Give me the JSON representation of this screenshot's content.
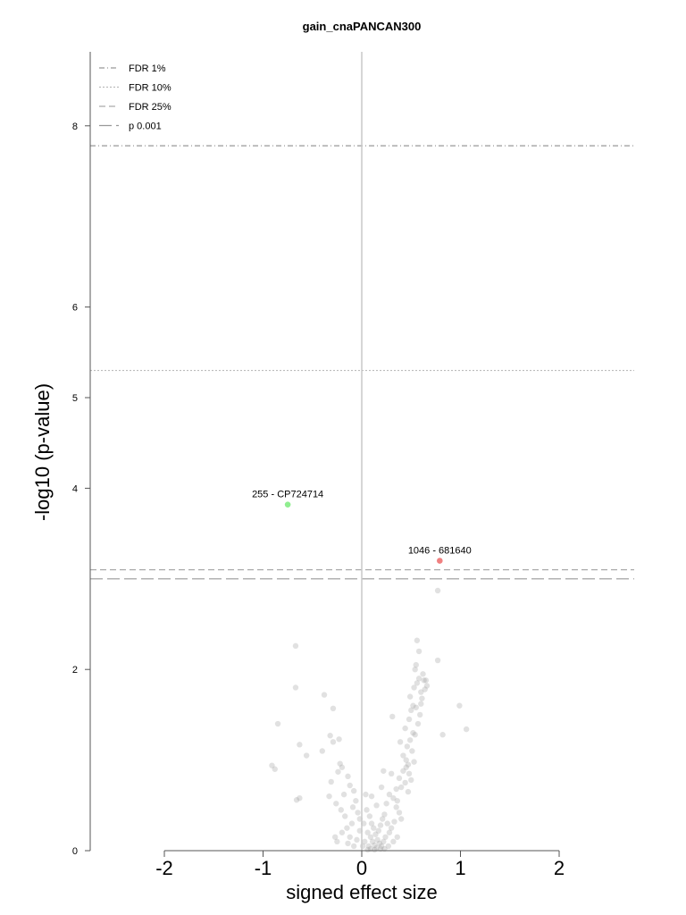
{
  "chart_data": {
    "type": "scatter",
    "title": "gain_cnaPANCAN300",
    "xlabel": "signed effect size",
    "ylabel": "-log10 (p-value)",
    "xlim": [
      -2.75,
      2.75
    ],
    "ylim": [
      0,
      8.8
    ],
    "xticks": [
      "-2",
      "-1",
      "0",
      "1",
      "2"
    ],
    "yticks": [
      "0",
      "2",
      "4",
      "5",
      "6",
      "8"
    ],
    "legend": {
      "position": "top-left",
      "entries": [
        {
          "label": "FDR 1%",
          "style": "dashdot"
        },
        {
          "label": "FDR 10%",
          "style": "dotted"
        },
        {
          "label": "FDR 25%",
          "style": "dashed"
        },
        {
          "label": "p 0.001",
          "style": "longdash"
        }
      ]
    },
    "thresholds": [
      {
        "name": "FDR 1%",
        "y": 7.78
      },
      {
        "name": "FDR 10%",
        "y": 5.3
      },
      {
        "name": "FDR 25%",
        "y": 3.1
      },
      {
        "name": "p 0.001",
        "y": 3.0
      }
    ],
    "highlighted": [
      {
        "label": "255 - CP724714",
        "x": -0.75,
        "y": 3.82,
        "color": "#90ee90"
      },
      {
        "label": "1046 - 681640",
        "x": 0.79,
        "y": 3.2,
        "color": "#f08080"
      }
    ],
    "points": [
      [
        -0.67,
        2.26
      ],
      [
        -0.67,
        1.8
      ],
      [
        -0.38,
        1.72
      ],
      [
        -0.29,
        1.57
      ],
      [
        -0.85,
        1.4
      ],
      [
        -0.63,
        1.17
      ],
      [
        -0.56,
        1.05
      ],
      [
        -0.91,
        0.94
      ],
      [
        -0.88,
        0.9
      ],
      [
        -0.63,
        0.58
      ],
      [
        -0.66,
        0.56
      ],
      [
        -0.32,
        1.27
      ],
      [
        -0.29,
        1.2
      ],
      [
        -0.23,
        1.23
      ],
      [
        -0.4,
        1.1
      ],
      [
        -0.22,
        0.96
      ],
      [
        -0.2,
        0.92
      ],
      [
        -0.24,
        0.87
      ],
      [
        -0.31,
        0.76
      ],
      [
        -0.14,
        0.82
      ],
      [
        -0.33,
        0.6
      ],
      [
        -0.26,
        0.52
      ],
      [
        -0.21,
        0.45
      ],
      [
        -0.17,
        0.38
      ],
      [
        -0.12,
        0.72
      ],
      [
        -0.08,
        0.66
      ],
      [
        -0.06,
        0.55
      ],
      [
        -0.04,
        0.42
      ],
      [
        -0.02,
        0.35
      ],
      [
        -0.1,
        0.3
      ],
      [
        -0.15,
        0.25
      ],
      [
        -0.2,
        0.2
      ],
      [
        -0.12,
        0.15
      ],
      [
        -0.05,
        0.12
      ],
      [
        -0.08,
        0.05
      ],
      [
        -0.02,
        0.22
      ],
      [
        -0.25,
        0.1
      ],
      [
        -0.18,
        0.62
      ],
      [
        -0.09,
        0.48
      ],
      [
        -0.27,
        0.15
      ],
      [
        -0.14,
        0.08
      ],
      [
        0.05,
        0.45
      ],
      [
        0.08,
        0.38
      ],
      [
        0.1,
        0.3
      ],
      [
        0.12,
        0.25
      ],
      [
        0.14,
        0.18
      ],
      [
        0.16,
        0.12
      ],
      [
        0.18,
        0.08
      ],
      [
        0.2,
        0.05
      ],
      [
        0.22,
        0.1
      ],
      [
        0.24,
        0.15
      ],
      [
        0.06,
        0.2
      ],
      [
        0.09,
        0.15
      ],
      [
        0.11,
        0.1
      ],
      [
        0.13,
        0.06
      ],
      [
        0.15,
        0.03
      ],
      [
        0.03,
        0.1
      ],
      [
        0.07,
        0.05
      ],
      [
        0.17,
        0.22
      ],
      [
        0.19,
        0.28
      ],
      [
        0.21,
        0.35
      ],
      [
        0.23,
        0.4
      ],
      [
        0.26,
        0.3
      ],
      [
        0.28,
        0.2
      ],
      [
        0.3,
        0.25
      ],
      [
        0.04,
        0.62
      ],
      [
        0.1,
        0.6
      ],
      [
        0.25,
        0.52
      ],
      [
        0.32,
        0.58
      ],
      [
        0.35,
        0.48
      ],
      [
        0.38,
        0.42
      ],
      [
        0.4,
        0.35
      ],
      [
        0.2,
        0.7
      ],
      [
        0.15,
        0.5
      ],
      [
        0.33,
        0.32
      ],
      [
        0.36,
        0.55
      ],
      [
        0.02,
        0.3
      ],
      [
        0.3,
        0.85
      ],
      [
        0.38,
        0.8
      ],
      [
        0.42,
        0.88
      ],
      [
        0.45,
        0.92
      ],
      [
        0.48,
        0.85
      ],
      [
        0.44,
        0.75
      ],
      [
        0.4,
        0.7
      ],
      [
        0.5,
        0.78
      ],
      [
        0.47,
        0.65
      ],
      [
        0.35,
        0.68
      ],
      [
        0.22,
        0.88
      ],
      [
        0.28,
        0.62
      ],
      [
        0.31,
        1.48
      ],
      [
        0.39,
        1.2
      ],
      [
        0.42,
        1.05
      ],
      [
        0.46,
        1.15
      ],
      [
        0.49,
        1.22
      ],
      [
        0.52,
        1.3
      ],
      [
        0.44,
        1.35
      ],
      [
        0.48,
        1.45
      ],
      [
        0.53,
        0.98
      ],
      [
        0.51,
        1.1
      ],
      [
        0.45,
        1.0
      ],
      [
        0.47,
        0.95
      ],
      [
        0.5,
        1.55
      ],
      [
        0.52,
        1.6
      ],
      [
        0.55,
        1.58
      ],
      [
        0.49,
        1.7
      ],
      [
        0.53,
        1.8
      ],
      [
        0.56,
        1.85
      ],
      [
        0.58,
        1.9
      ],
      [
        0.6,
        1.75
      ],
      [
        0.63,
        1.88
      ],
      [
        0.61,
        1.68
      ],
      [
        0.57,
        1.4
      ],
      [
        0.54,
        1.28
      ],
      [
        0.55,
        2.05
      ],
      [
        0.54,
        2.0
      ],
      [
        0.58,
        2.2
      ],
      [
        0.56,
        2.32
      ],
      [
        0.62,
        1.95
      ],
      [
        0.65,
        1.88
      ],
      [
        0.77,
        2.1
      ],
      [
        0.99,
        1.6
      ],
      [
        1.06,
        1.34
      ],
      [
        0.82,
        1.28
      ],
      [
        0.77,
        2.87
      ],
      [
        0.59,
        1.5
      ],
      [
        0.66,
        1.82
      ],
      [
        0.64,
        1.78
      ],
      [
        0.6,
        1.62
      ],
      [
        0.36,
        0.15
      ],
      [
        0.32,
        0.1
      ],
      [
        0.27,
        0.05
      ],
      [
        0.23,
        0.02
      ],
      [
        0.19,
        0.02
      ],
      [
        0.13,
        0.01
      ],
      [
        0.09,
        0.02
      ],
      [
        0.06,
        0.01
      ],
      [
        0.01,
        0.05
      ]
    ]
  }
}
